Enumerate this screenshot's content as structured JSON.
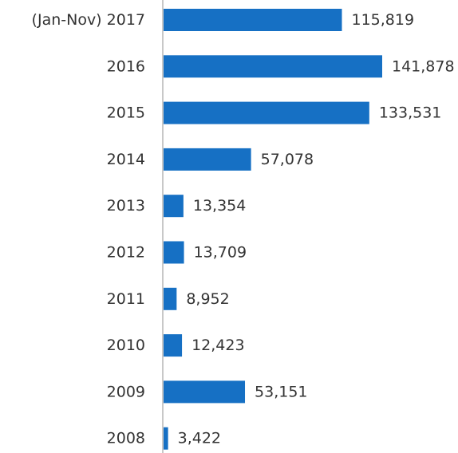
{
  "chart_data": {
    "type": "bar",
    "orientation": "horizontal",
    "categories": [
      "(Jan-Nov) 2017",
      "2016",
      "2015",
      "2014",
      "2013",
      "2012",
      "2011",
      "2010",
      "2009",
      "2008"
    ],
    "values": [
      115819,
      141878,
      133531,
      57078,
      13354,
      13709,
      8952,
      12423,
      53151,
      3422
    ],
    "value_labels": [
      "115,819",
      "141,878",
      "133,531",
      "57,078",
      "13,354",
      "13,709",
      "8,952",
      "12,423",
      "53,151",
      "3,422"
    ],
    "title": "",
    "xlabel": "",
    "ylabel": "",
    "xlim": [
      0,
      150000
    ],
    "grid": false,
    "legend": "none",
    "bar_color": "#1670c4",
    "axis_color": "#c8c8c8",
    "text_color": "#333333"
  }
}
